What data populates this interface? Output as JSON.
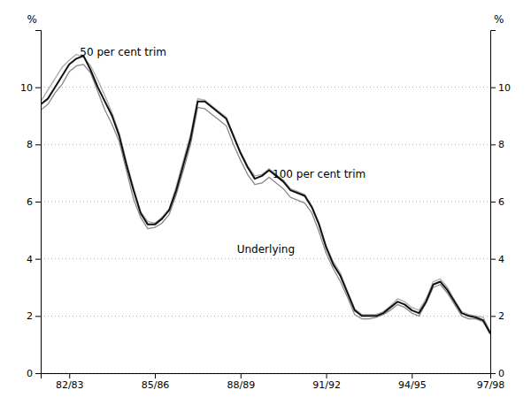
{
  "chart_data": {
    "type": "line",
    "ylabel": "%",
    "y2label": "%",
    "categories": [
      null,
      null,
      null,
      null,
      "82/83",
      null,
      null,
      null,
      null,
      null,
      null,
      null,
      null,
      null,
      null,
      null,
      "85/86",
      null,
      null,
      null,
      null,
      null,
      null,
      null,
      null,
      null,
      null,
      null,
      "88/89",
      null,
      null,
      null,
      null,
      null,
      null,
      null,
      null,
      null,
      null,
      null,
      "91/92",
      null,
      null,
      null,
      null,
      null,
      null,
      null,
      null,
      null,
      null,
      null,
      "94/95",
      null,
      null,
      null,
      null,
      null,
      null,
      null,
      null,
      null,
      null,
      "97/98"
    ],
    "ylim": [
      0,
      12
    ],
    "yticks": [
      0,
      2,
      4,
      6,
      8,
      10
    ],
    "y2lim": [
      0,
      12
    ],
    "y2ticks": [
      0,
      2,
      4,
      6,
      8,
      10
    ],
    "grid": true,
    "annotations": [
      {
        "text": "50 per cent trim",
        "x": 5.5,
        "y": 11.1
      },
      {
        "text": "100 per cent trim",
        "x": 32.5,
        "y": 6.85
      },
      {
        "text": "Underlying",
        "x": 27.5,
        "y": 4.2
      }
    ],
    "series": [
      {
        "color": "#aaaaaa",
        "values": [
          9.5,
          9.9,
          10.3,
          10.7,
          10.95,
          11.15,
          11.05,
          10.75,
          10.25,
          9.7,
          9.1,
          8.4,
          7.4,
          6.5,
          5.65,
          5.3,
          5.25,
          5.45,
          5.75,
          6.55,
          7.45,
          8.35,
          9.6,
          9.55,
          9.35,
          9.15,
          8.95,
          8.35,
          7.75,
          7.25,
          6.9,
          6.95,
          7.15,
          6.95,
          6.75,
          6.45,
          6.35,
          6.25,
          5.85,
          5.25,
          4.45,
          3.9,
          3.5,
          2.85,
          2.25,
          2.05,
          2.05,
          2.05,
          2.15,
          2.35,
          2.6,
          2.5,
          2.3,
          2.2,
          2.6,
          3.2,
          3.3,
          3.0,
          2.55,
          2.15,
          2.05,
          2.0,
          1.95,
          1.45
        ]
      },
      {
        "color": "#888888",
        "values": [
          9.2,
          9.4,
          9.8,
          10.1,
          10.55,
          10.75,
          10.8,
          10.5,
          9.85,
          9.2,
          8.7,
          8.1,
          7.1,
          6.1,
          5.45,
          5.05,
          5.1,
          5.25,
          5.55,
          6.25,
          7.1,
          8.0,
          9.3,
          9.25,
          9.05,
          8.85,
          8.65,
          8.0,
          7.45,
          6.95,
          6.6,
          6.65,
          6.85,
          6.65,
          6.45,
          6.15,
          6.05,
          5.95,
          5.6,
          4.95,
          4.2,
          3.65,
          3.2,
          2.65,
          2.05,
          1.9,
          1.9,
          1.95,
          2.05,
          2.2,
          2.4,
          2.3,
          2.1,
          2.0,
          2.45,
          3.0,
          3.1,
          2.8,
          2.4,
          2.0,
          1.9,
          1.9,
          1.8,
          1.35
        ]
      },
      {
        "color": "#111111",
        "values": [
          9.4,
          9.6,
          10.0,
          10.4,
          10.8,
          11.0,
          11.1,
          10.6,
          10.0,
          9.5,
          9.0,
          8.3,
          7.3,
          6.4,
          5.6,
          5.2,
          5.2,
          5.4,
          5.7,
          6.4,
          7.3,
          8.2,
          9.5,
          9.5,
          9.3,
          9.1,
          8.9,
          8.3,
          7.7,
          7.2,
          6.8,
          6.9,
          7.1,
          6.9,
          6.7,
          6.4,
          6.3,
          6.2,
          5.8,
          5.2,
          4.4,
          3.8,
          3.4,
          2.8,
          2.2,
          2.0,
          2.0,
          2.0,
          2.1,
          2.3,
          2.5,
          2.4,
          2.2,
          2.1,
          2.5,
          3.1,
          3.2,
          2.9,
          2.5,
          2.1,
          2.0,
          1.95,
          1.85,
          1.4
        ]
      }
    ]
  }
}
